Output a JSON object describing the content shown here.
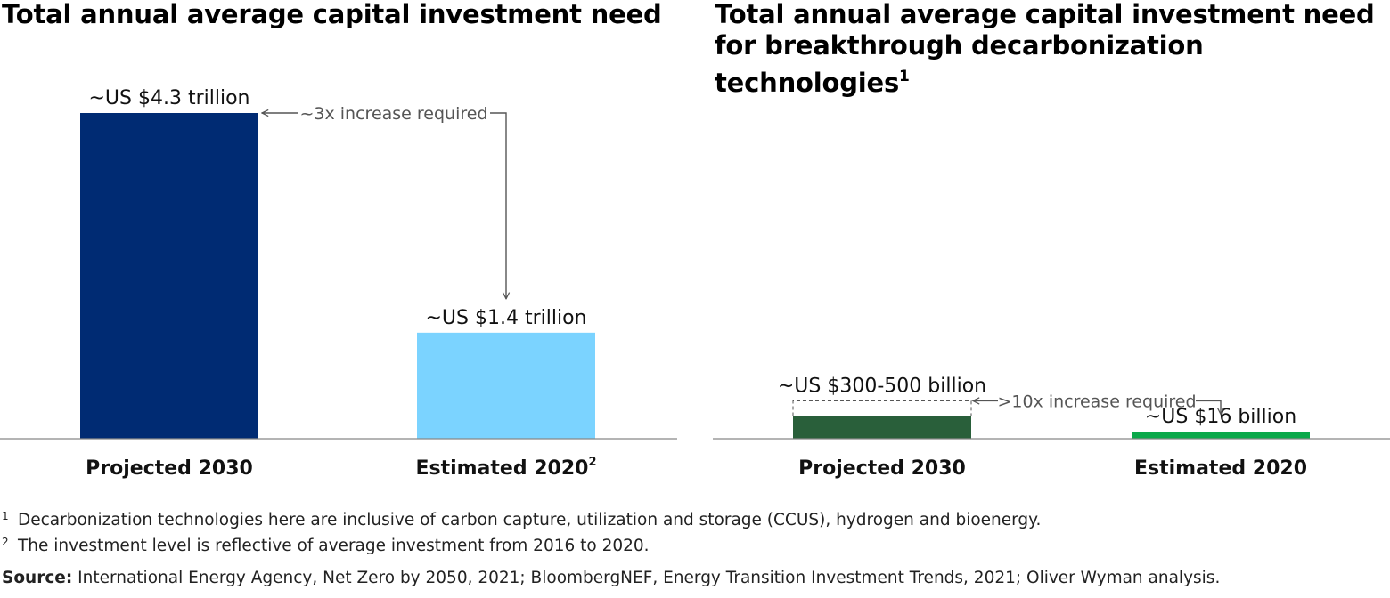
{
  "chart_data": [
    {
      "type": "bar",
      "title": "Total annual average capital investment need",
      "categories": [
        "Projected 2030",
        "Estimated 2020"
      ],
      "category_superscripts": [
        "",
        "2"
      ],
      "unit": "US$ trillion",
      "values": [
        4.3,
        1.4
      ],
      "value_labels": [
        "~US $4.3 trillion",
        "~US $1.4 trillion"
      ],
      "colors": [
        "#002B73",
        "#7BD3FF"
      ],
      "annotation": "~3x increase required",
      "ylim": [
        0,
        4.3
      ],
      "grid": false
    },
    {
      "type": "bar",
      "title": "Total annual average capital investment need for breakthrough decarbonization technologies",
      "title_superscript": "1",
      "categories": [
        "Projected 2030",
        "Estimated 2020"
      ],
      "unit": "US$ billion",
      "values": [
        300,
        16
      ],
      "range_high": [
        500,
        null
      ],
      "value_labels": [
        "~US $300-500 billion",
        "~US $16 billion"
      ],
      "colors": [
        "#295F3A",
        "#0BA84A"
      ],
      "annotation": ">10x increase required",
      "ylim": [
        0,
        4300
      ],
      "grid": false
    }
  ],
  "footnotes": [
    {
      "marker": "1",
      "text": "Decarbonization technologies here are inclusive of carbon capture, utilization and storage (CCUS), hydrogen and bioenergy."
    },
    {
      "marker": "2",
      "text": "The investment level is reflective of average investment from 2016 to 2020."
    }
  ],
  "source": {
    "label": "Source:",
    "text": "International Energy Agency, Net Zero by 2050, 2021; BloombergNEF, Energy Transition Investment Trends, 2021; Oliver Wyman analysis."
  }
}
